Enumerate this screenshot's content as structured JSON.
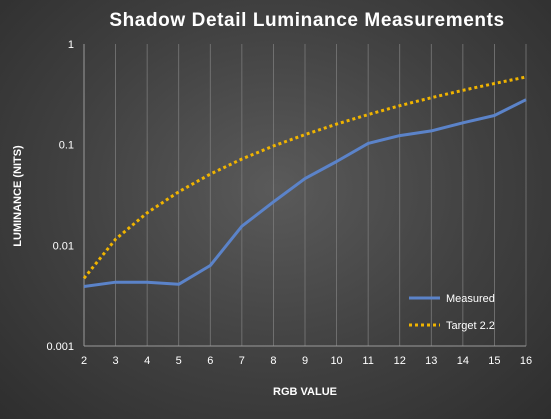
{
  "chart_data": {
    "type": "line",
    "title": "Shadow Detail Luminance Measurements",
    "xlabel": "RGB VALUE",
    "ylabel": "LUMINANCE (NITS)",
    "y_scale": "log",
    "ylim": [
      0.001,
      1
    ],
    "xlim": [
      2,
      16
    ],
    "x": [
      2,
      3,
      4,
      5,
      6,
      7,
      8,
      9,
      10,
      11,
      12,
      13,
      14,
      15,
      16
    ],
    "x_ticks": [
      "2",
      "3",
      "4",
      "5",
      "6",
      "7",
      "8",
      "9",
      "10",
      "11",
      "12",
      "13",
      "14",
      "15",
      "16"
    ],
    "y_ticks": [
      {
        "value": 1,
        "label": "1"
      },
      {
        "value": 0.1,
        "label": "0.1"
      },
      {
        "value": 0.01,
        "label": "0.01"
      },
      {
        "value": 0.001,
        "label": "0.001"
      }
    ],
    "grid": "vertical",
    "legend_position": "bottom-right",
    "series": [
      {
        "name": "Measured",
        "color": "#5b83c9",
        "style": "solid",
        "values": [
          0.0039,
          0.0043,
          0.0043,
          0.0041,
          0.0063,
          0.0155,
          0.027,
          0.046,
          0.068,
          0.103,
          0.123,
          0.137,
          0.165,
          0.195,
          0.28
        ]
      },
      {
        "name": "Target 2.2",
        "color": "#f0b400",
        "style": "dotted",
        "values": [
          0.0047,
          0.0115,
          0.021,
          0.034,
          0.051,
          0.072,
          0.097,
          0.126,
          0.16,
          0.199,
          0.244,
          0.293,
          0.347,
          0.405,
          0.47
        ]
      }
    ]
  }
}
